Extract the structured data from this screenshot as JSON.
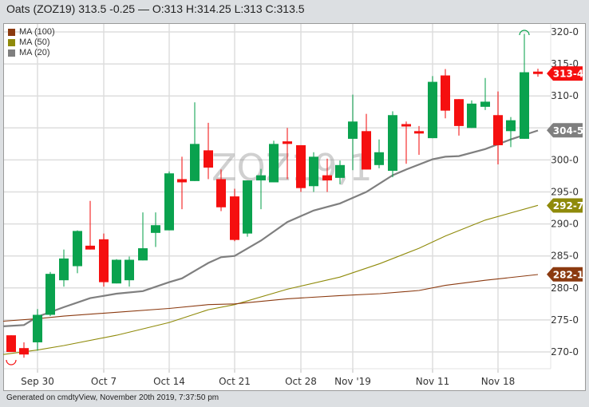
{
  "header": {
    "title": "Oats (ZOZ19) 313.5 -0.25 — O:313 H:314.25 L:313 C:313.5"
  },
  "legend": [
    {
      "label": "MA (100)",
      "color": "#8b3a10"
    },
    {
      "label": "MA (50)",
      "color": "#8f8a0a"
    },
    {
      "label": "MA (20)",
      "color": "#7f7f7f"
    }
  ],
  "watermark": "ZOZ19,1",
  "footer": "Generated on cmdtyView, November 20th 2019, 7:37:50 pm",
  "colors": {
    "up": "#0aa24e",
    "down": "#f50f0f",
    "ma100": "#8b3a10",
    "ma50": "#8f8a0a",
    "ma20": "#7f7f7f",
    "grid": "#dddddd"
  },
  "chart_data": {
    "type": "candlestick",
    "title": "Oats (ZOZ19) 313.5 -0.25 — O:313 H:314.25 L:313 C:313.5",
    "xlabel": "",
    "ylabel": "",
    "ylim": [
      268,
      321
    ],
    "y_ticks": [
      "270-0",
      "275-0",
      "280-0",
      "285-0",
      "290-0",
      "295-0",
      "300-0",
      "305-0",
      "310-0",
      "315-0",
      "320-0"
    ],
    "x_ticks": [
      "Sep 30",
      "Oct 7",
      "Oct 14",
      "Oct 21",
      "Oct 28",
      "Nov '19",
      "Nov 11",
      "Nov 18"
    ],
    "grid": true,
    "legend_position": "top-left",
    "last_price_labels": [
      {
        "label": "313-4",
        "value": 313.5,
        "color": "#f50f0f"
      },
      {
        "label": "304-5",
        "value": 304.625,
        "color": "#7f7f7f"
      },
      {
        "label": "292-7",
        "value": 292.875,
        "color": "#8f8a0a"
      },
      {
        "label": "282-1",
        "value": 282.125,
        "color": "#8b3a10"
      }
    ],
    "candles": [
      {
        "x": 14,
        "o": 272.6,
        "h": 272.6,
        "l": 270.3,
        "c": 270.0
      },
      {
        "x": 30,
        "o": 270.6,
        "h": 271.5,
        "l": 269.1,
        "c": 269.6
      },
      {
        "x": 47,
        "o": 271.5,
        "h": 276.7,
        "l": 270.2,
        "c": 275.8
      },
      {
        "x": 63,
        "o": 275.8,
        "h": 282.5,
        "l": 275.6,
        "c": 282.2
      },
      {
        "x": 80,
        "o": 281.2,
        "h": 286.0,
        "l": 280.2,
        "c": 284.6
      },
      {
        "x": 97,
        "o": 283.4,
        "h": 289.0,
        "l": 282.3,
        "c": 288.9
      },
      {
        "x": 113,
        "o": 286.6,
        "h": 293.6,
        "l": 286.0,
        "c": 286.0
      },
      {
        "x": 130,
        "o": 287.6,
        "h": 288.5,
        "l": 280.2,
        "c": 280.9
      },
      {
        "x": 146,
        "o": 280.7,
        "h": 284.5,
        "l": 280.7,
        "c": 284.4
      },
      {
        "x": 162,
        "o": 281.2,
        "h": 284.9,
        "l": 280.2,
        "c": 284.4
      },
      {
        "x": 179,
        "o": 284.3,
        "h": 291.8,
        "l": 284.3,
        "c": 286.2
      },
      {
        "x": 195,
        "o": 288.6,
        "h": 291.8,
        "l": 286.4,
        "c": 289.8
      },
      {
        "x": 212,
        "o": 289.0,
        "h": 298.2,
        "l": 289.0,
        "c": 297.9
      },
      {
        "x": 228,
        "o": 297.0,
        "h": 300.5,
        "l": 292.3,
        "c": 296.5
      },
      {
        "x": 244,
        "o": 296.7,
        "h": 309.0,
        "l": 296.7,
        "c": 302.5
      },
      {
        "x": 261,
        "o": 301.5,
        "h": 305.8,
        "l": 297.0,
        "c": 298.8
      },
      {
        "x": 277,
        "o": 297.0,
        "h": 298.5,
        "l": 292.0,
        "c": 292.6
      },
      {
        "x": 294,
        "o": 294.3,
        "h": 295.5,
        "l": 287.3,
        "c": 287.5
      },
      {
        "x": 310,
        "o": 288.5,
        "h": 296.8,
        "l": 288.0,
        "c": 296.8
      },
      {
        "x": 327,
        "o": 296.8,
        "h": 298.6,
        "l": 292.3,
        "c": 297.6
      },
      {
        "x": 343,
        "o": 296.5,
        "h": 303.0,
        "l": 296.5,
        "c": 302.5
      },
      {
        "x": 360,
        "o": 302.9,
        "h": 305.0,
        "l": 297.0,
        "c": 302.5
      },
      {
        "x": 377,
        "o": 302.3,
        "h": 302.3,
        "l": 295.0,
        "c": 295.6
      },
      {
        "x": 393,
        "o": 295.9,
        "h": 301.2,
        "l": 295.0,
        "c": 300.5
      },
      {
        "x": 410,
        "o": 297.6,
        "h": 300.2,
        "l": 295.0,
        "c": 296.8
      },
      {
        "x": 426,
        "o": 297.2,
        "h": 299.9,
        "l": 296.2,
        "c": 299.2
      },
      {
        "x": 442,
        "o": 303.3,
        "h": 310.2,
        "l": 298.4,
        "c": 306.0
      },
      {
        "x": 459,
        "o": 304.5,
        "h": 307.2,
        "l": 298.5,
        "c": 298.5
      },
      {
        "x": 475,
        "o": 299.2,
        "h": 303.2,
        "l": 298.7,
        "c": 301.2
      },
      {
        "x": 492,
        "o": 298.3,
        "h": 307.6,
        "l": 297.3,
        "c": 307.0
      },
      {
        "x": 509,
        "o": 305.6,
        "h": 306.0,
        "l": 299.4,
        "c": 305.3
      },
      {
        "x": 525,
        "o": 304.5,
        "h": 305.3,
        "l": 300.8,
        "c": 304.3
      },
      {
        "x": 542,
        "o": 303.4,
        "h": 313.1,
        "l": 303.4,
        "c": 312.2
      },
      {
        "x": 558,
        "o": 313.2,
        "h": 314.2,
        "l": 306.5,
        "c": 307.7
      },
      {
        "x": 575,
        "o": 309.5,
        "h": 309.5,
        "l": 303.8,
        "c": 305.3
      },
      {
        "x": 591,
        "o": 305.0,
        "h": 309.3,
        "l": 305.0,
        "c": 308.8
      },
      {
        "x": 608,
        "o": 308.3,
        "h": 312.8,
        "l": 307.8,
        "c": 309.1
      },
      {
        "x": 624,
        "o": 307.0,
        "h": 310.7,
        "l": 299.3,
        "c": 302.3
      },
      {
        "x": 640,
        "o": 304.5,
        "h": 306.7,
        "l": 302.0,
        "c": 306.2
      },
      {
        "x": 657,
        "o": 303.3,
        "h": 319.7,
        "l": 303.3,
        "c": 313.7
      },
      {
        "x": 674,
        "o": 313.8,
        "h": 314.25,
        "l": 313.0,
        "c": 313.5
      }
    ],
    "series": [
      {
        "name": "MA (20)",
        "points": [
          [
            4,
            274.0
          ],
          [
            30,
            274.2
          ],
          [
            47,
            275.5
          ],
          [
            80,
            277.0
          ],
          [
            113,
            278.4
          ],
          [
            146,
            279.1
          ],
          [
            179,
            279.5
          ],
          [
            212,
            280.9
          ],
          [
            228,
            281.5
          ],
          [
            261,
            283.9
          ],
          [
            277,
            284.8
          ],
          [
            294,
            285.0
          ],
          [
            327,
            287.4
          ],
          [
            360,
            290.3
          ],
          [
            393,
            292.1
          ],
          [
            426,
            293.2
          ],
          [
            459,
            295.0
          ],
          [
            492,
            297.6
          ],
          [
            509,
            298.5
          ],
          [
            542,
            300.1
          ],
          [
            558,
            300.5
          ],
          [
            575,
            300.6
          ],
          [
            608,
            301.7
          ],
          [
            640,
            303.2
          ],
          [
            674,
            304.6
          ]
        ]
      },
      {
        "name": "MA (50)",
        "points": [
          [
            4,
            269.6
          ],
          [
            47,
            270.3
          ],
          [
            80,
            271.0
          ],
          [
            146,
            272.6
          ],
          [
            212,
            274.6
          ],
          [
            261,
            276.6
          ],
          [
            294,
            277.4
          ],
          [
            360,
            279.8
          ],
          [
            426,
            281.7
          ],
          [
            476,
            283.8
          ],
          [
            525,
            286.2
          ],
          [
            558,
            288.1
          ],
          [
            608,
            290.6
          ],
          [
            674,
            292.9
          ]
        ]
      },
      {
        "name": "MA (100)",
        "points": [
          [
            4,
            274.8
          ],
          [
            47,
            275.2
          ],
          [
            80,
            275.6
          ],
          [
            146,
            276.2
          ],
          [
            212,
            276.8
          ],
          [
            261,
            277.4
          ],
          [
            294,
            277.5
          ],
          [
            360,
            278.3
          ],
          [
            426,
            278.8
          ],
          [
            476,
            279.1
          ],
          [
            525,
            279.6
          ],
          [
            558,
            280.4
          ],
          [
            608,
            281.2
          ],
          [
            674,
            282.1
          ]
        ]
      }
    ]
  }
}
